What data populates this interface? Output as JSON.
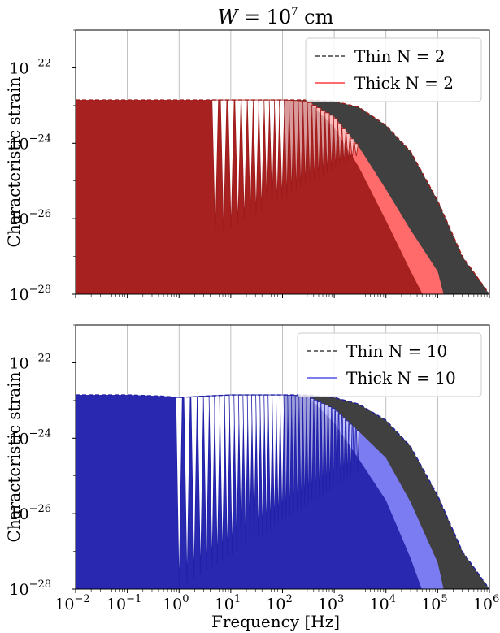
{
  "title": {
    "var": "W",
    "eq": " = 10",
    "exp": "7",
    "unit": " cm"
  },
  "xlabel": "Frequency [Hz]",
  "ylabel": "Characteristic strain",
  "colors": {
    "thin": "#404040",
    "thick_top": "#ff6b6b",
    "thick_top_dark": "#9e1a1a",
    "thick_bottom": "#7b7bf2",
    "thick_bottom_dark": "#1f1fa8"
  },
  "chart_data": [
    {
      "type": "line",
      "xscale": "log",
      "yscale": "log",
      "xlim": [
        0.01,
        1000000
      ],
      "ylim": [
        1e-28,
        1e-21
      ],
      "xticks": [
        {
          "base": "10",
          "exp": "−2"
        },
        {
          "base": "10",
          "exp": "−1"
        },
        {
          "base": "10",
          "exp": "0"
        },
        {
          "base": "10",
          "exp": "1"
        },
        {
          "base": "10",
          "exp": "2"
        },
        {
          "base": "10",
          "exp": "3"
        },
        {
          "base": "10",
          "exp": "4"
        },
        {
          "base": "10",
          "exp": "5"
        },
        {
          "base": "10",
          "exp": "6"
        }
      ],
      "yticks": [
        {
          "base": "10",
          "exp": "−22"
        },
        {
          "base": "10",
          "exp": "−24"
        },
        {
          "base": "10",
          "exp": "−26"
        },
        {
          "base": "10",
          "exp": "−28"
        }
      ],
      "grid": "vertical",
      "legend_position": "top-right",
      "series": [
        {
          "name": "Thin N = 2",
          "style": "dashed",
          "x": [
            0.01,
            0.1,
            1,
            3,
            5,
            10,
            30,
            100,
            300,
            1000,
            3000,
            10000,
            30000,
            100000,
            300000,
            1000000
          ],
          "y": [
            1.4e-23,
            1.4e-23,
            1.4e-23,
            1.4e-23,
            1.4e-23,
            1.4e-23,
            1.4e-23,
            1.4e-23,
            1.4e-23,
            1.3e-23,
            9e-24,
            3e-24,
            6e-25,
            3e-26,
            1e-27,
            1e-28
          ]
        },
        {
          "name": "Thick N = 2",
          "style": "solid",
          "x": [
            0.01,
            0.1,
            1,
            3,
            5,
            10,
            30,
            100,
            300,
            1000,
            3000,
            10000,
            30000,
            100000,
            130000
          ],
          "y": [
            1.4e-23,
            1.4e-23,
            1.4e-23,
            1.4e-23,
            1.4e-23,
            1.4e-23,
            1.4e-23,
            1.4e-23,
            1.3e-23,
            5e-24,
            8e-25,
            6e-26,
            5e-27,
            4e-28,
            1e-28
          ]
        }
      ]
    },
    {
      "type": "line",
      "xscale": "log",
      "yscale": "log",
      "xlim": [
        0.01,
        1000000
      ],
      "ylim": [
        1e-28,
        1e-21
      ],
      "xticks": [
        {
          "base": "10",
          "exp": "−2"
        },
        {
          "base": "10",
          "exp": "−1"
        },
        {
          "base": "10",
          "exp": "0"
        },
        {
          "base": "10",
          "exp": "1"
        },
        {
          "base": "10",
          "exp": "2"
        },
        {
          "base": "10",
          "exp": "3"
        },
        {
          "base": "10",
          "exp": "4"
        },
        {
          "base": "10",
          "exp": "5"
        },
        {
          "base": "10",
          "exp": "6"
        }
      ],
      "yticks": [
        {
          "base": "10",
          "exp": "−22"
        },
        {
          "base": "10",
          "exp": "−24"
        },
        {
          "base": "10",
          "exp": "−26"
        },
        {
          "base": "10",
          "exp": "−28"
        }
      ],
      "grid": "vertical",
      "legend_position": "top-right",
      "series": [
        {
          "name": "Thin N = 10",
          "style": "dashed",
          "x": [
            0.01,
            0.1,
            0.5,
            1,
            3,
            10,
            30,
            100,
            300,
            1000,
            3000,
            10000,
            30000,
            100000,
            300000,
            1000000
          ],
          "y": [
            1.4e-23,
            1.4e-23,
            1.3e-23,
            1.2e-23,
            1.3e-23,
            1.4e-23,
            1.4e-23,
            1.4e-23,
            1.4e-23,
            1.2e-23,
            8e-24,
            3e-24,
            6e-25,
            3e-26,
            1e-27,
            1e-28
          ]
        },
        {
          "name": "Thick N = 10",
          "style": "solid",
          "x": [
            0.01,
            0.1,
            0.5,
            1,
            3,
            10,
            30,
            100,
            300,
            1000,
            3000,
            10000,
            30000,
            100000,
            130000
          ],
          "y": [
            1.4e-23,
            1.4e-23,
            1.3e-23,
            1.2e-23,
            1.3e-23,
            1.4e-23,
            1.4e-23,
            1.4e-23,
            1.3e-23,
            6e-24,
            1.5e-24,
            3e-25,
            2e-26,
            5e-28,
            1e-28
          ]
        }
      ]
    }
  ]
}
